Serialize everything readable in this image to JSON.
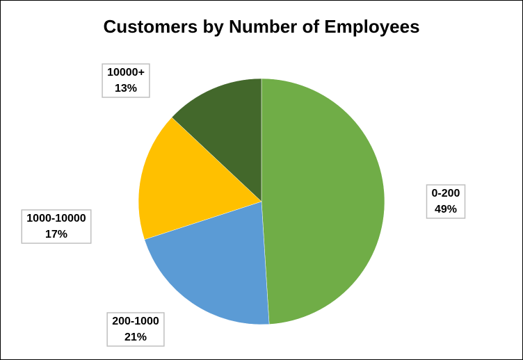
{
  "chart_data": {
    "type": "pie",
    "title": "Customers by Number of Employees",
    "categories": [
      "0-200",
      "200-1000",
      "1000-10000",
      "10000+"
    ],
    "values": [
      49,
      21,
      17,
      13
    ],
    "value_labels": [
      "49%",
      "21%",
      "17%",
      "13%"
    ],
    "colors": [
      "#70ad47",
      "#5b9bd5",
      "#ffc000",
      "#43682b"
    ]
  }
}
